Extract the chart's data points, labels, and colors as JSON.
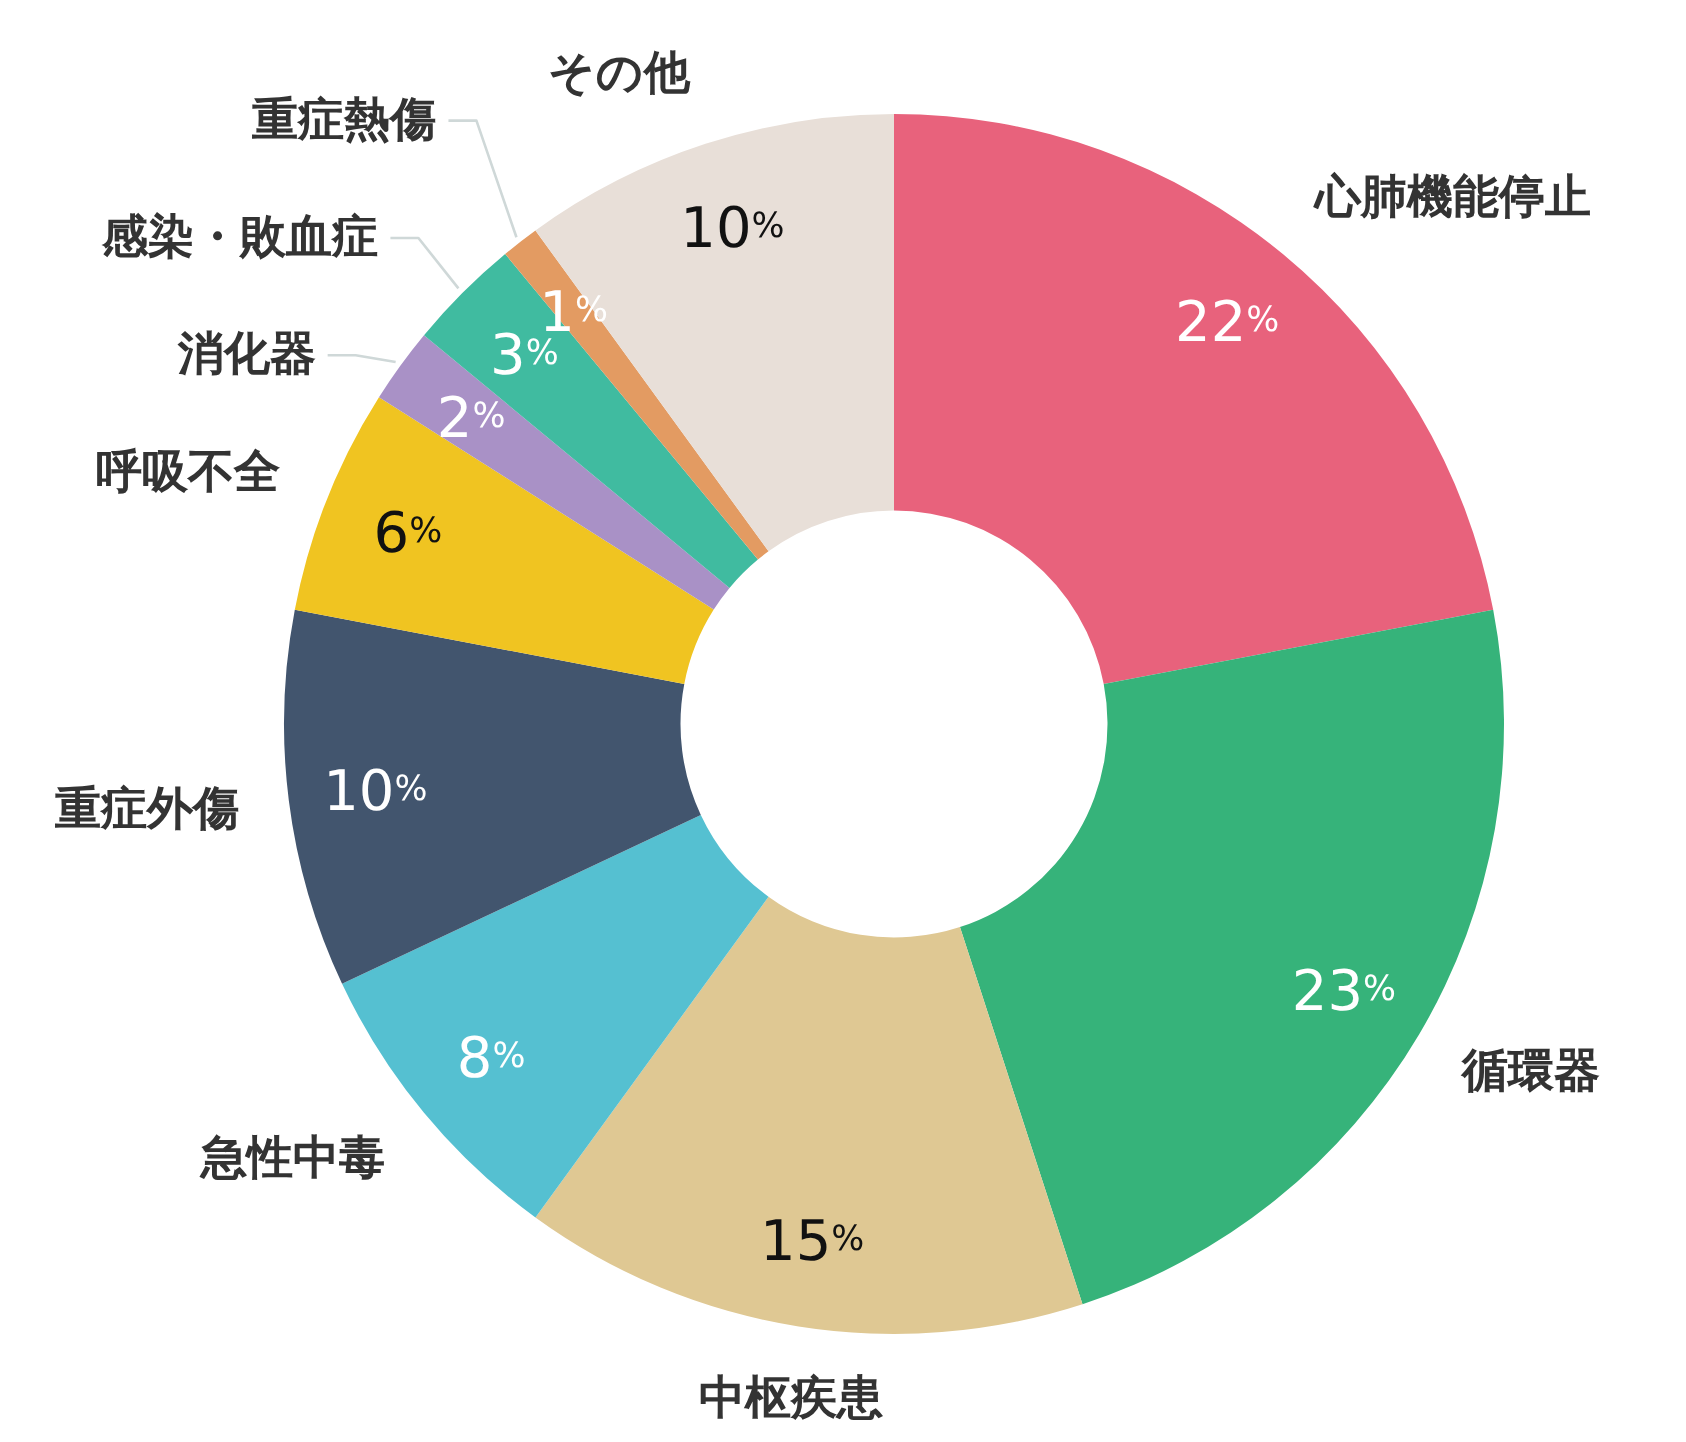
{
  "chart_data": {
    "type": "donut",
    "categories": [
      "心肺機能停止",
      "循環器",
      "中枢疾患",
      "急性中毒",
      "重症外傷",
      "呼吸不全",
      "消化器",
      "感染・敗血症",
      "重症熱傷",
      "その他"
    ],
    "values": [
      22,
      23,
      15,
      8,
      10,
      6,
      2,
      3,
      1,
      10
    ],
    "colors": [
      "#e8627c",
      "#36b37a",
      "#dfc893",
      "#55c0d1",
      "#42556e",
      "#f0c421",
      "#a991c6",
      "#40bba0",
      "#e39b62",
      "#e8dfd8"
    ],
    "value_labels": [
      "22%",
      "23%",
      "15%",
      "8%",
      "10%",
      "6%",
      "2%",
      "3%",
      "1%",
      "10%"
    ]
  }
}
